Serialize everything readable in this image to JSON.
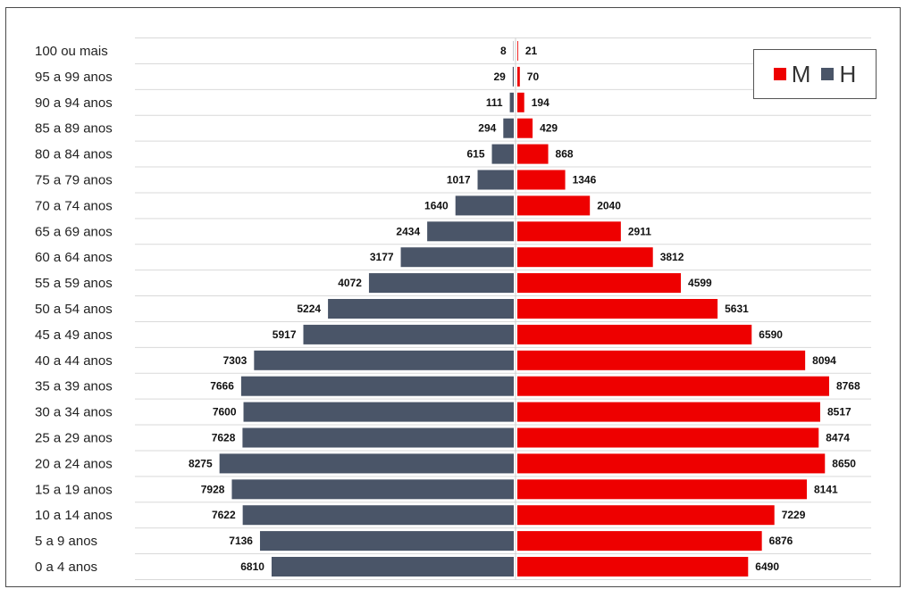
{
  "chart_data": {
    "type": "bar",
    "orientation": "horizontal-population-pyramid",
    "categories": [
      "100 ou mais",
      "95 a 99 anos",
      "90 a 94 anos",
      "85 a 89 anos",
      "80 a 84 anos",
      "75 a 79 anos",
      "70 a 74 anos",
      "65 a 69 anos",
      "60 a 64 anos",
      "55 a 59 anos",
      "50 a 54 anos",
      "45 a 49 anos",
      "40 a 44 anos",
      "35 a 39 anos",
      "30 a 34 anos",
      "25 a 29 anos",
      "20 a 24 anos",
      "15 a 19 anos",
      "10 a 14 anos",
      "5 a 9 anos",
      "0 a 4 anos"
    ],
    "series": [
      {
        "name": "H",
        "side": "left",
        "color": "#4a5568",
        "values": [
          8,
          29,
          111,
          294,
          615,
          1017,
          1640,
          2434,
          3177,
          4072,
          5224,
          5917,
          7303,
          7666,
          7600,
          7628,
          8275,
          7928,
          7622,
          7136,
          6810
        ]
      },
      {
        "name": "M",
        "side": "right",
        "color": "#ee0000",
        "values": [
          21,
          70,
          194,
          429,
          868,
          1346,
          2040,
          2911,
          3812,
          4599,
          5631,
          6590,
          8094,
          8768,
          8517,
          8474,
          8650,
          8141,
          7229,
          6876,
          6490
        ]
      }
    ],
    "legend": {
      "position": "top-right",
      "items": [
        "M",
        "H"
      ]
    },
    "grid": true
  }
}
